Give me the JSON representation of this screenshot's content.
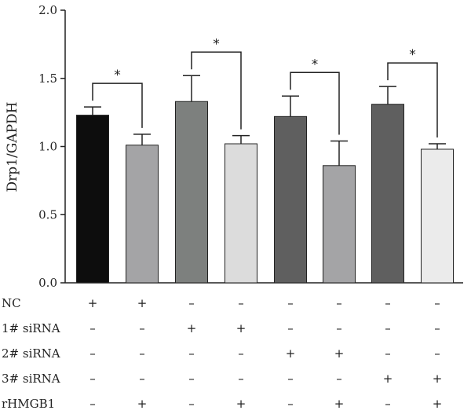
{
  "chart_data": {
    "type": "bar",
    "title": "",
    "xlabel": "",
    "ylabel": "Drp1/GAPDH",
    "ylim": [
      0,
      2.0
    ],
    "yticks": [
      "0.0",
      "0.5",
      "1.0",
      "1.5",
      "2.0"
    ],
    "grid": false,
    "bars": [
      {
        "value": 1.23,
        "error": 0.06,
        "color": "#0d0d0d"
      },
      {
        "value": 1.01,
        "error": 0.08,
        "color": "#a4a4a6"
      },
      {
        "value": 1.33,
        "error": 0.19,
        "color": "#7d807e"
      },
      {
        "value": 1.02,
        "error": 0.06,
        "color": "#dcdcdc"
      },
      {
        "value": 1.22,
        "error": 0.15,
        "color": "#5f5f5f"
      },
      {
        "value": 0.86,
        "error": 0.18,
        "color": "#a4a4a6"
      },
      {
        "value": 1.31,
        "error": 0.13,
        "color": "#5f5f5f"
      },
      {
        "value": 0.98,
        "error": 0.04,
        "color": "#ebebeb"
      }
    ],
    "significance": [
      {
        "left": 0,
        "right": 1,
        "label": "*"
      },
      {
        "left": 2,
        "right": 3,
        "label": "*"
      },
      {
        "left": 4,
        "right": 5,
        "label": "*"
      },
      {
        "left": 6,
        "right": 7,
        "label": "*"
      }
    ],
    "conditions": [
      {
        "label": "NC",
        "marks": [
          "+",
          "+",
          "–",
          "–",
          "–",
          "–",
          "–",
          "–"
        ]
      },
      {
        "label": "1# siRNA",
        "marks": [
          "–",
          "–",
          "+",
          "+",
          "–",
          "–",
          "–",
          "–"
        ]
      },
      {
        "label": "2# siRNA",
        "marks": [
          "–",
          "–",
          "–",
          "–",
          "+",
          "+",
          "–",
          "–"
        ]
      },
      {
        "label": "3# siRNA",
        "marks": [
          "–",
          "–",
          "–",
          "–",
          "–",
          "–",
          "+",
          "+"
        ]
      },
      {
        "label": "rHMGB1",
        "marks": [
          "–",
          "+",
          "–",
          "+",
          "–",
          "+",
          "–",
          "+"
        ]
      }
    ]
  }
}
